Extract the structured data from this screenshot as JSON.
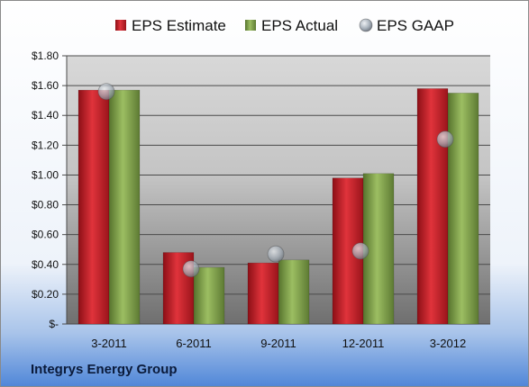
{
  "chart_data": {
    "type": "bar",
    "categories": [
      "3-2011",
      "6-2011",
      "9-2011",
      "12-2011",
      "3-2012"
    ],
    "series": [
      {
        "name": "EPS Estimate",
        "kind": "bar",
        "color": "#c0202a",
        "values": [
          1.57,
          0.48,
          0.41,
          0.98,
          1.58
        ]
      },
      {
        "name": "EPS Actual",
        "kind": "bar",
        "color": "#7fa24a",
        "values": [
          1.57,
          0.38,
          0.43,
          1.01,
          1.55
        ]
      },
      {
        "name": "EPS GAAP",
        "kind": "scatter",
        "color": "#b9c2cc",
        "values": [
          1.56,
          0.37,
          0.47,
          0.49,
          1.24
        ]
      }
    ],
    "yticks": [
      "$-",
      "$0.20",
      "$0.40",
      "$0.60",
      "$0.80",
      "$1.00",
      "$1.20",
      "$1.40",
      "$1.60",
      "$1.80"
    ],
    "ylim": [
      0,
      1.8
    ],
    "grid": true,
    "legend_position": "top"
  },
  "footer": {
    "company": "Integrys Energy Group"
  }
}
